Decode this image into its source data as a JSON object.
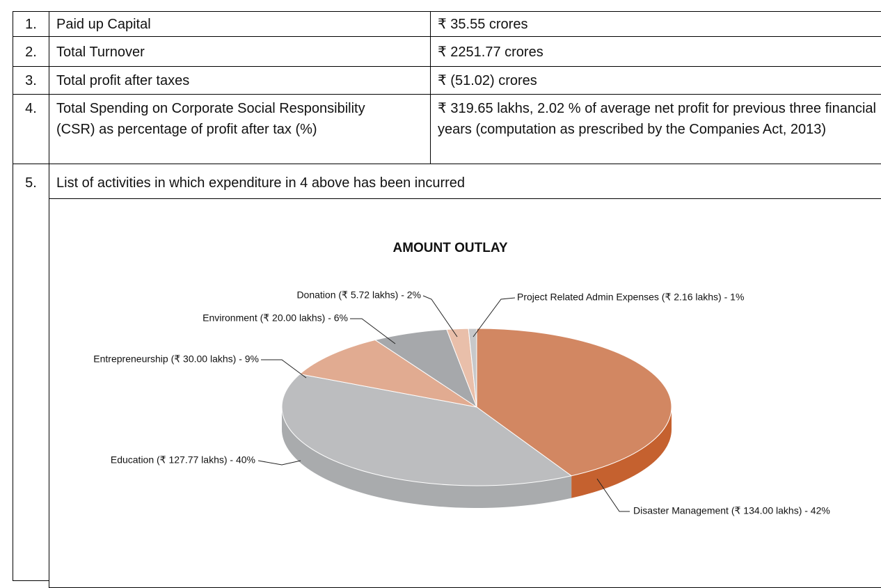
{
  "table": {
    "rows": [
      [
        "1.",
        "Paid up Capital",
        "₹ 35.55 crores"
      ],
      [
        "2.",
        "Total Turnover",
        "₹ 2251.77 crores"
      ],
      [
        "3.",
        "Total profit after taxes",
        "₹ (51.02) crores"
      ],
      [
        "4.",
        "Total Spending on Corporate Social Responsibility (CSR) as percentage of profit after tax (%)",
        "₹  319.65 lakhs, 2.02 % of average net profit for previous three financial years (computation as prescribed by the Companies Act, 2013)"
      ],
      [
        "5.",
        "List of activities in which expenditure in 4 above has been incurred"
      ]
    ]
  },
  "chart": {
    "type": "pie",
    "title": "AMOUNT OUTLAY",
    "labels": [
      "Disaster Management (₹ 134.00 lakhs) - 42%",
      "Education (₹ 127.77 lakhs) - 40%",
      "Entrepreneurship (₹ 30.00 lakhs) - 9%",
      "Environment (₹ 20.00 lakhs) - 6%",
      "Donation (₹ 5.72 lakhs) - 2%",
      "Project Related Admin Expenses (₹ 2.16 lakhs) - 1%"
    ],
    "values": [
      134.0,
      127.77,
      30.0,
      20.0,
      5.72,
      2.16
    ],
    "colors": [
      "#d28762",
      "#bcbdbf",
      "#e1ab91",
      "#a6a8ab",
      "#e9bfaa",
      "#c7c8ca"
    ],
    "side_colors": [
      "#c5612f",
      "#a9abad",
      "#c98f73",
      "#8f9194",
      "#d4a48c",
      "#aeafb1"
    ]
  }
}
